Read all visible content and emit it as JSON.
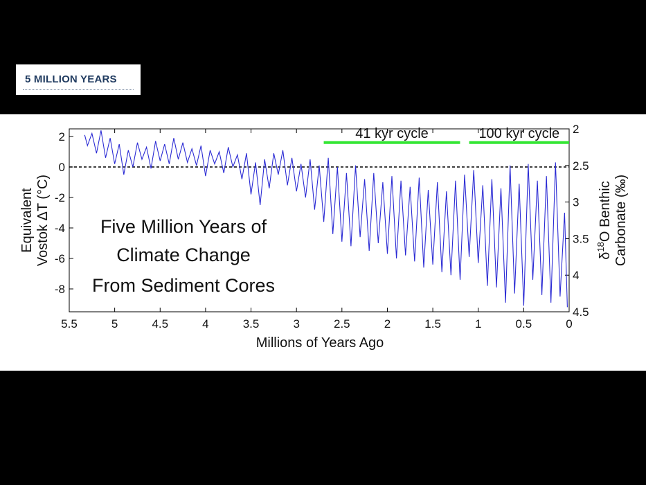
{
  "slide": {
    "title": "5 MILLION YEARS"
  },
  "chart_data": {
    "type": "line",
    "xlabel": "Millions of Years Ago",
    "ylabel_left_line1": "Equivalent",
    "ylabel_left_line2": "Vostok ΔT (°C)",
    "ylabel_right_prefix": "δ",
    "ylabel_right_sup": "18",
    "ylabel_right_line1_rest": "O Benthic",
    "ylabel_right_line2": "Carbonate (‰)",
    "xlim": [
      5.5,
      0
    ],
    "ylim": [
      -9.5,
      2.5
    ],
    "ylim_right": [
      4.5,
      2
    ],
    "x_ticks": [
      "5.5",
      "5",
      "4.5",
      "4",
      "3.5",
      "3",
      "2.5",
      "2",
      "1.5",
      "1",
      "0.5",
      "0"
    ],
    "x_tick_values": [
      5.5,
      5,
      4.5,
      4,
      3.5,
      3,
      2.5,
      2,
      1.5,
      1,
      0.5,
      0
    ],
    "y_ticks": [
      "2",
      "0",
      "-2",
      "-4",
      "-6",
      "-8"
    ],
    "y_tick_values": [
      2,
      0,
      -2,
      -4,
      -6,
      -8
    ],
    "y2_ticks": [
      "2",
      "2.5",
      "3",
      "3.5",
      "4",
      "4.5"
    ],
    "y2_tick_values": [
      2,
      2.5,
      3,
      3.5,
      4,
      4.5
    ],
    "reference_line_y": 0,
    "annotation_lines": [
      "Five Million Years of",
      "Climate Change",
      "From Sediment Cores"
    ],
    "cycles": [
      {
        "label": "41 kyr cycle",
        "x_start": 2.7,
        "x_end": 1.2
      },
      {
        "label": "100 kyr cycle",
        "x_start": 1.1,
        "x_end": 0.0
      }
    ],
    "colors": {
      "series": "#2b2bd4",
      "cycle_bar": "#33e633",
      "axes": "#000000"
    },
    "series": [
      {
        "x": [
          5.33,
          5.3,
          5.25,
          5.2,
          5.15,
          5.1,
          5.05,
          5.0,
          4.95,
          4.9,
          4.85,
          4.8,
          4.75,
          4.7,
          4.65,
          4.6,
          4.55,
          4.5,
          4.45,
          4.4,
          4.35,
          4.3,
          4.25,
          4.2,
          4.15,
          4.1,
          4.05,
          4.0,
          3.95,
          3.9,
          3.85,
          3.8,
          3.75,
          3.7,
          3.65,
          3.6,
          3.55,
          3.5,
          3.45,
          3.4,
          3.35,
          3.3,
          3.25,
          3.2,
          3.15,
          3.1,
          3.05,
          3.0,
          2.95,
          2.9,
          2.85,
          2.8,
          2.75,
          2.7,
          2.65,
          2.6,
          2.55,
          2.5,
          2.45,
          2.4,
          2.35,
          2.3,
          2.25,
          2.2,
          2.15,
          2.1,
          2.05,
          2.0,
          1.95,
          1.9,
          1.85,
          1.8,
          1.75,
          1.7,
          1.65,
          1.6,
          1.55,
          1.5,
          1.45,
          1.4,
          1.35,
          1.3,
          1.25,
          1.2,
          1.15,
          1.1,
          1.05,
          1.0,
          0.95,
          0.9,
          0.85,
          0.8,
          0.75,
          0.7,
          0.65,
          0.6,
          0.55,
          0.5,
          0.45,
          0.4,
          0.35,
          0.3,
          0.25,
          0.2,
          0.15,
          0.1,
          0.05,
          0.02
        ],
        "y": [
          2.1,
          1.4,
          2.2,
          0.9,
          2.4,
          0.6,
          1.9,
          0.2,
          1.5,
          -0.5,
          1.1,
          0.0,
          1.6,
          0.5,
          1.3,
          -0.1,
          1.7,
          0.4,
          1.5,
          0.2,
          1.9,
          0.5,
          1.6,
          0.3,
          1.2,
          0.1,
          1.4,
          -0.6,
          1.1,
          0.2,
          1.0,
          -0.4,
          1.3,
          0.0,
          0.8,
          -0.8,
          0.9,
          -1.8,
          0.3,
          -2.5,
          0.5,
          -1.4,
          0.9,
          -0.5,
          1.1,
          -1.2,
          0.6,
          -1.6,
          0.2,
          -2.0,
          0.5,
          -2.8,
          0.1,
          -3.6,
          0.6,
          -4.4,
          0.0,
          -4.9,
          -0.4,
          -5.2,
          0.1,
          -4.6,
          -0.8,
          -5.5,
          -0.4,
          -5.0,
          -1.0,
          -5.7,
          -0.6,
          -6.0,
          -0.9,
          -5.8,
          -1.3,
          -6.2,
          -0.7,
          -6.6,
          -1.5,
          -6.4,
          -1.0,
          -6.9,
          -1.6,
          -7.1,
          -0.9,
          -7.4,
          -0.5,
          -5.9,
          -0.2,
          -6.3,
          -1.2,
          -7.8,
          -0.8,
          -7.9,
          -1.4,
          -8.9,
          0.1,
          -8.3,
          -1.1,
          -9.1,
          0.2,
          -7.4,
          -0.9,
          -8.4,
          -0.6,
          -8.9,
          0.3,
          -8.5,
          -3.0,
          -9.2
        ]
      }
    ]
  }
}
